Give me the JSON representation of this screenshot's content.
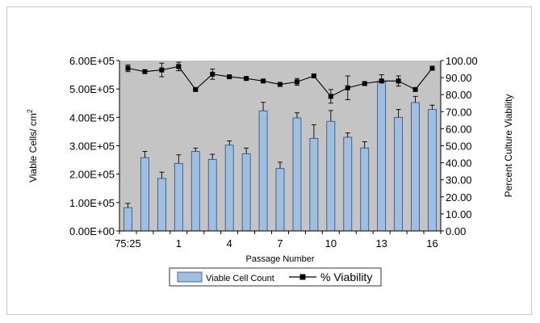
{
  "chart_data": {
    "type": "bar",
    "xlabel": "Passage Number",
    "ylabel_left_base": "Viable Cells/ cm",
    "ylabel_left_sup": "2",
    "ylabel_right": "Percent Culture Viability",
    "x_tick_labels": [
      "75:25",
      "1",
      "4",
      "7",
      "10",
      "13",
      "16"
    ],
    "x_tick_index": [
      0,
      3,
      6,
      9,
      12,
      15,
      18
    ],
    "ylim_left": [
      0,
      600000
    ],
    "ylim_right": [
      0,
      100
    ],
    "y_ticks_left": [
      "0.00E+00",
      "1.00E+05",
      "2.00E+05",
      "3.00E+05",
      "4.00E+05",
      "5.00E+05",
      "6.00E+05"
    ],
    "y_ticks_right": [
      "0.00",
      "10.00",
      "20.00",
      "30.00",
      "40.00",
      "50.00",
      "60.00",
      "70.00",
      "80.00",
      "90.00",
      "100.00"
    ],
    "legend": {
      "bar": "Viable Cell Count",
      "line": "% Viability"
    },
    "colors": {
      "plot_bg": "#c4c4c4",
      "bar": "#9fbfe2",
      "bar_edge": "#2b4d7a",
      "line": "#000000"
    },
    "series": [
      {
        "name": "Viable Cell Count",
        "axis": "left",
        "kind": "bar",
        "values": [
          82000,
          258000,
          185000,
          238000,
          280000,
          252000,
          302000,
          272000,
          423000,
          220000,
          398000,
          326000,
          386000,
          330000,
          292000,
          525000,
          400000,
          452000,
          428000
        ],
        "errors": [
          15000,
          22000,
          22000,
          30000,
          12000,
          18000,
          15000,
          20000,
          30000,
          22000,
          18000,
          48000,
          38000,
          15000,
          22000,
          25000,
          28000,
          22000,
          15000
        ]
      },
      {
        "name": "% Viability",
        "axis": "right",
        "kind": "line",
        "values": [
          95.5,
          93.5,
          94.5,
          96.5,
          83.0,
          92.0,
          90.5,
          89.5,
          88.0,
          86.0,
          87.5,
          91.0,
          79.0,
          84.0,
          86.5,
          88.0,
          88.0,
          83.0,
          95.5
        ],
        "errors": [
          2.0,
          1.0,
          4.0,
          2.5,
          0.5,
          3.0,
          0.8,
          0.6,
          0.8,
          1.0,
          2.0,
          1.0,
          4.0,
          7.0,
          0.8,
          1.0,
          3.0,
          1.0,
          1.0
        ]
      }
    ]
  }
}
